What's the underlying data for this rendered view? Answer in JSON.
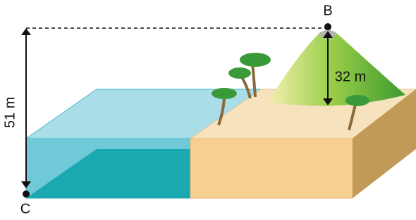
{
  "points": {
    "top": "B",
    "bottom": "C"
  },
  "measurements": {
    "total_height": "51 m",
    "mountain_height": "32 m"
  }
}
